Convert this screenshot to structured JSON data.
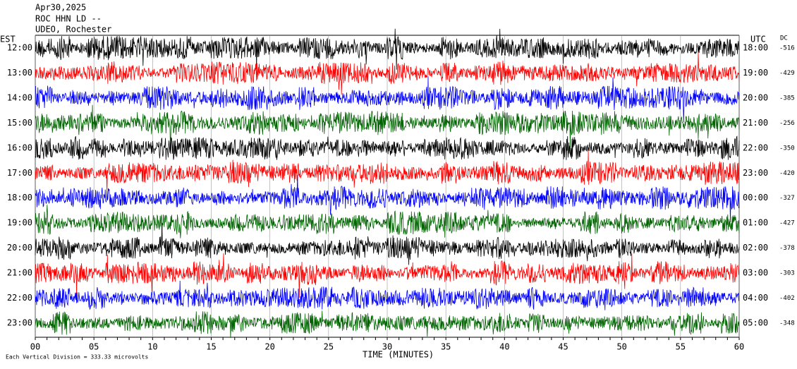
{
  "chart_data": {
    "type": "helicorder",
    "header": [
      "Apr30,2025",
      "ROC HHN LD --",
      "UDEO, Rochester"
    ],
    "left_axis_label": "EST",
    "right_axis_label": "UTC",
    "dc_label": "DC",
    "left_times": [
      "12:00",
      "13:00",
      "14:00",
      "15:00",
      "16:00",
      "17:00",
      "18:00",
      "19:00",
      "20:00",
      "21:00",
      "22:00",
      "23:00"
    ],
    "right_times": [
      "18:00",
      "19:00",
      "20:00",
      "21:00",
      "22:00",
      "23:00",
      "00:00",
      "01:00",
      "02:00",
      "03:00",
      "04:00",
      "05:00"
    ],
    "dc_offsets": [
      -516,
      -429,
      -385,
      -256,
      -350,
      -420,
      -327,
      -427,
      -378,
      -303,
      -402,
      -348
    ],
    "trace_colors": [
      "#000000",
      "#ff0000",
      "#0000ff",
      "#006400"
    ],
    "xlim": [
      0,
      60
    ],
    "xticks": [
      {
        "value": 0,
        "label": "00"
      },
      {
        "value": 5,
        "label": "05"
      },
      10,
      15,
      20,
      25,
      30,
      35,
      40,
      45,
      50,
      55,
      60
    ],
    "xlabel": "TIME (MINUTES)",
    "footer": "Each Vertical Division =  333.33 microvolts"
  }
}
